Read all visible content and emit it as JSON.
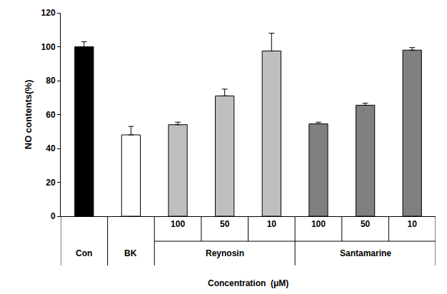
{
  "chart_data": {
    "type": "bar",
    "categories": [
      null,
      null,
      "100",
      "50",
      "10",
      "100",
      "50",
      "10"
    ],
    "groups": [
      {
        "name": "Con",
        "size": 1
      },
      {
        "name": "BK",
        "size": 1
      },
      {
        "name": "Reynosin",
        "size": 3
      },
      {
        "name": "Santamarine",
        "size": 3
      }
    ],
    "values": [
      100,
      48,
      54,
      71,
      97.5,
      54.5,
      65.5,
      98
    ],
    "errors": [
      3,
      5,
      1.5,
      4,
      10.5,
      1,
      1.2,
      1.5
    ],
    "colors": [
      "#000000",
      "#ffffff",
      "#bfbfbf",
      "#bfbfbf",
      "#bfbfbf",
      "#808080",
      "#808080",
      "#808080"
    ],
    "x_label": "Concentration  (μM)",
    "y_label": "NO contents(%)",
    "ylim": [
      0,
      120
    ],
    "yticks": [
      0,
      20,
      40,
      60,
      80,
      100,
      120
    ],
    "grid": false
  }
}
